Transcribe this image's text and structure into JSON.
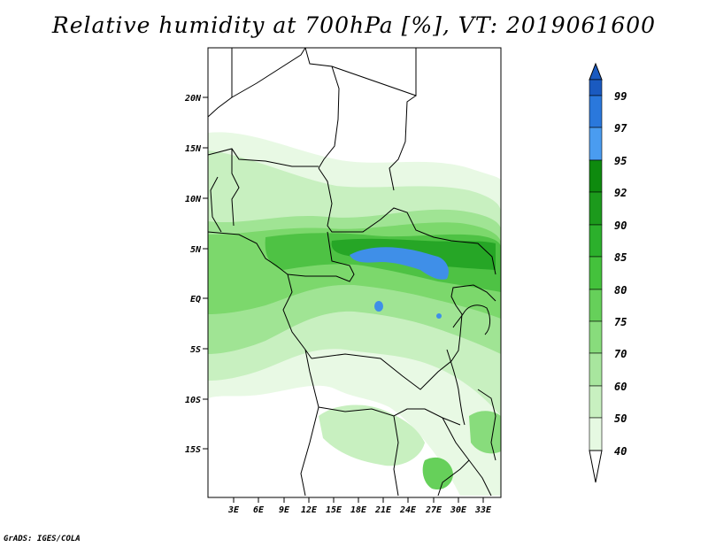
{
  "title": "Relative humidity at 700hPa [%], VT: 2019061600",
  "credit": "GrADS: IGES/COLA",
  "map": {
    "lat_labels": [
      "20N",
      "15N",
      "10N",
      "5N",
      "EQ",
      "5S",
      "10S",
      "15S"
    ],
    "lon_labels": [
      "3E",
      "6E",
      "9E",
      "12E",
      "15E",
      "18E",
      "21E",
      "24E",
      "27E",
      "30E",
      "33E"
    ],
    "colorbar": {
      "levels": [
        "40",
        "50",
        "60",
        "70",
        "75",
        "80",
        "85",
        "90",
        "92",
        "95",
        "97",
        "99"
      ],
      "colors": [
        "#ffffff",
        "#e6f9e2",
        "#c8f0c0",
        "#a8e69e",
        "#88dc7c",
        "#66d05a",
        "#44c23c",
        "#2cb02c",
        "#1c9a1c",
        "#0e8a0e",
        "#4a9cf0",
        "#2a78dc",
        "#1a5ac0"
      ]
    }
  }
}
